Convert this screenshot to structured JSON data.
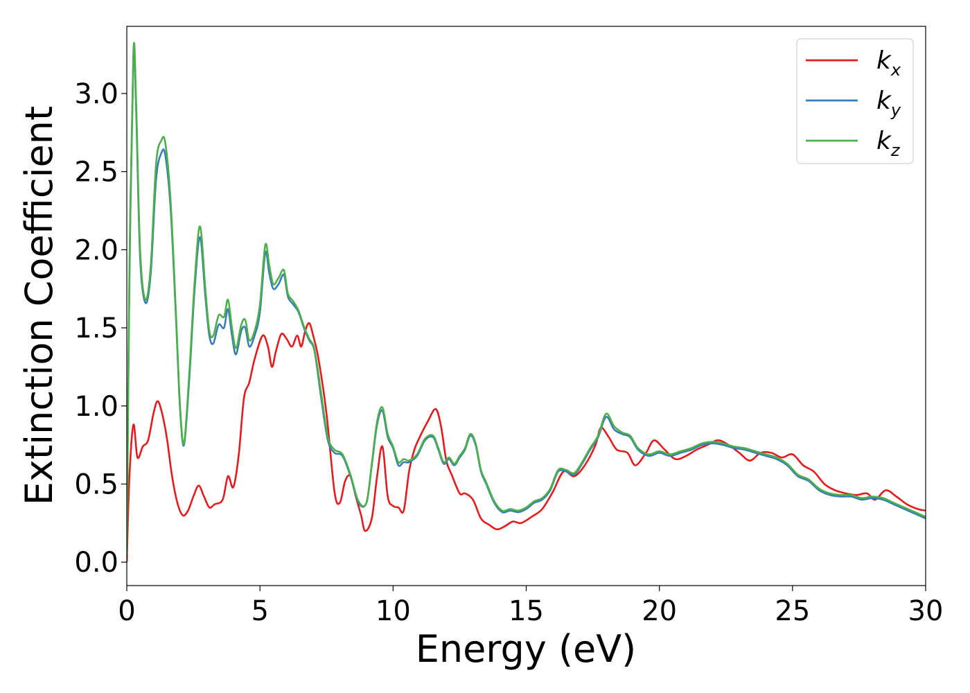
{
  "chart_data": {
    "type": "line",
    "title": "",
    "xlabel": "Energy (eV)",
    "ylabel": "Extinction Coefficient",
    "xlim": [
      0,
      30
    ],
    "ylim": [
      -0.15,
      3.43
    ],
    "xticks": [
      0,
      5,
      10,
      15,
      20,
      25,
      30
    ],
    "xtick_labels": [
      "0",
      "5",
      "10",
      "15",
      "20",
      "25",
      "30"
    ],
    "yticks": [
      0.0,
      0.5,
      1.0,
      1.5,
      2.0,
      2.5,
      3.0
    ],
    "ytick_labels": [
      "0.0",
      "0.5",
      "1.0",
      "1.5",
      "2.0",
      "2.5",
      "3.0"
    ],
    "grid": false,
    "legend": {
      "position": "top-right",
      "entries": [
        {
          "base": "k",
          "sub": "x",
          "color": "#e41a1c"
        },
        {
          "base": "k",
          "sub": "y",
          "color": "#377eb8"
        },
        {
          "base": "k",
          "sub": "z",
          "color": "#4daf4a"
        }
      ]
    },
    "series": [
      {
        "name": "k_x",
        "color": "#e41a1c",
        "x": [
          0,
          0.1,
          0.25,
          0.4,
          0.6,
          0.8,
          1.0,
          1.15,
          1.3,
          1.5,
          1.7,
          1.9,
          2.1,
          2.3,
          2.5,
          2.7,
          2.9,
          3.1,
          3.3,
          3.6,
          3.8,
          4.0,
          4.2,
          4.4,
          4.6,
          4.8,
          5.1,
          5.3,
          5.45,
          5.6,
          5.8,
          6.0,
          6.2,
          6.4,
          6.55,
          6.7,
          6.85,
          7.0,
          7.2,
          7.5,
          7.8,
          8.0,
          8.2,
          8.4,
          8.6,
          8.8,
          8.95,
          9.2,
          9.4,
          9.6,
          9.8,
          10.0,
          10.2,
          10.4,
          10.6,
          10.8,
          11.0,
          11.3,
          11.6,
          11.8,
          12.0,
          12.2,
          12.5,
          12.7,
          13.0,
          13.3,
          13.6,
          13.9,
          14.2,
          14.5,
          14.8,
          15.2,
          15.6,
          16.0,
          16.4,
          16.8,
          17.2,
          17.6,
          17.8,
          18.1,
          18.4,
          18.8,
          19.1,
          19.5,
          19.8,
          20.2,
          20.6,
          21.0,
          21.4,
          21.8,
          22.2,
          22.6,
          23.0,
          23.4,
          23.8,
          24.2,
          24.6,
          25.0,
          25.4,
          25.8,
          26.2,
          26.6,
          27.0,
          27.4,
          27.8,
          28.1,
          28.5,
          28.9,
          29.3,
          29.7,
          30.0
        ],
        "y": [
          0.0,
          0.55,
          0.88,
          0.67,
          0.74,
          0.78,
          0.95,
          1.03,
          0.97,
          0.8,
          0.55,
          0.38,
          0.3,
          0.33,
          0.42,
          0.49,
          0.42,
          0.35,
          0.37,
          0.4,
          0.55,
          0.48,
          0.68,
          1.05,
          1.15,
          1.3,
          1.45,
          1.38,
          1.25,
          1.35,
          1.46,
          1.43,
          1.38,
          1.45,
          1.38,
          1.48,
          1.53,
          1.45,
          1.3,
          0.95,
          0.45,
          0.38,
          0.52,
          0.55,
          0.42,
          0.3,
          0.2,
          0.28,
          0.55,
          0.74,
          0.42,
          0.36,
          0.35,
          0.33,
          0.58,
          0.72,
          0.8,
          0.9,
          0.98,
          0.87,
          0.65,
          0.56,
          0.44,
          0.44,
          0.4,
          0.28,
          0.24,
          0.21,
          0.23,
          0.26,
          0.25,
          0.29,
          0.34,
          0.45,
          0.58,
          0.55,
          0.62,
          0.75,
          0.86,
          0.8,
          0.72,
          0.7,
          0.62,
          0.7,
          0.78,
          0.72,
          0.66,
          0.68,
          0.72,
          0.75,
          0.78,
          0.75,
          0.7,
          0.65,
          0.7,
          0.7,
          0.67,
          0.69,
          0.62,
          0.58,
          0.5,
          0.46,
          0.44,
          0.43,
          0.44,
          0.4,
          0.46,
          0.42,
          0.37,
          0.34,
          0.33
        ]
      },
      {
        "name": "k_y",
        "color": "#377eb8",
        "x": [
          0,
          0.1,
          0.25,
          0.35,
          0.5,
          0.7,
          0.9,
          1.1,
          1.3,
          1.45,
          1.65,
          1.85,
          2.0,
          2.15,
          2.35,
          2.55,
          2.75,
          2.95,
          3.1,
          3.25,
          3.45,
          3.65,
          3.8,
          3.95,
          4.1,
          4.3,
          4.45,
          4.6,
          4.8,
          5.0,
          5.2,
          5.35,
          5.5,
          5.7,
          5.9,
          6.05,
          6.25,
          6.45,
          6.65,
          6.85,
          7.05,
          7.3,
          7.55,
          7.8,
          8.1,
          8.4,
          8.7,
          9.0,
          9.2,
          9.4,
          9.6,
          9.8,
          10.0,
          10.2,
          10.4,
          10.6,
          10.9,
          11.2,
          11.5,
          11.7,
          11.9,
          12.1,
          12.3,
          12.5,
          12.7,
          12.9,
          13.1,
          13.3,
          13.5,
          13.8,
          14.1,
          14.4,
          14.7,
          15.0,
          15.3,
          15.6,
          15.9,
          16.2,
          16.5,
          16.8,
          17.1,
          17.4,
          17.7,
          18.0,
          18.3,
          18.6,
          18.9,
          19.2,
          19.6,
          20.0,
          20.4,
          20.8,
          21.2,
          21.6,
          22.0,
          22.4,
          22.8,
          23.2,
          23.6,
          24.0,
          24.4,
          24.8,
          25.2,
          25.6,
          26.0,
          26.4,
          26.8,
          27.2,
          27.6,
          28.0,
          28.4,
          28.8,
          29.2,
          29.6,
          30.0
        ],
        "y": [
          0.05,
          1.8,
          3.25,
          2.9,
          1.95,
          1.66,
          1.85,
          2.45,
          2.62,
          2.6,
          2.25,
          1.55,
          0.98,
          0.75,
          1.18,
          1.75,
          2.08,
          1.7,
          1.45,
          1.4,
          1.52,
          1.5,
          1.62,
          1.45,
          1.33,
          1.48,
          1.5,
          1.38,
          1.45,
          1.6,
          1.98,
          1.85,
          1.75,
          1.78,
          1.84,
          1.7,
          1.65,
          1.6,
          1.5,
          1.42,
          1.35,
          1.05,
          0.78,
          0.7,
          0.68,
          0.55,
          0.38,
          0.38,
          0.62,
          0.88,
          0.97,
          0.8,
          0.73,
          0.62,
          0.64,
          0.64,
          0.68,
          0.78,
          0.8,
          0.72,
          0.63,
          0.66,
          0.62,
          0.67,
          0.72,
          0.81,
          0.75,
          0.58,
          0.5,
          0.38,
          0.32,
          0.33,
          0.32,
          0.34,
          0.38,
          0.4,
          0.46,
          0.58,
          0.58,
          0.56,
          0.63,
          0.72,
          0.8,
          0.93,
          0.85,
          0.82,
          0.8,
          0.72,
          0.68,
          0.7,
          0.68,
          0.7,
          0.72,
          0.75,
          0.76,
          0.75,
          0.73,
          0.72,
          0.7,
          0.68,
          0.66,
          0.62,
          0.55,
          0.52,
          0.46,
          0.43,
          0.42,
          0.42,
          0.4,
          0.41,
          0.4,
          0.37,
          0.34,
          0.31,
          0.28
        ]
      },
      {
        "name": "k_z",
        "color": "#4daf4a",
        "x": [
          0,
          0.1,
          0.25,
          0.35,
          0.5,
          0.7,
          0.9,
          1.1,
          1.3,
          1.45,
          1.65,
          1.85,
          2.0,
          2.15,
          2.35,
          2.55,
          2.75,
          2.95,
          3.1,
          3.25,
          3.45,
          3.65,
          3.8,
          3.95,
          4.1,
          4.3,
          4.45,
          4.6,
          4.8,
          5.0,
          5.2,
          5.35,
          5.5,
          5.7,
          5.9,
          6.05,
          6.25,
          6.45,
          6.65,
          6.85,
          7.05,
          7.3,
          7.55,
          7.8,
          8.1,
          8.4,
          8.7,
          9.0,
          9.2,
          9.4,
          9.6,
          9.8,
          10.0,
          10.2,
          10.4,
          10.6,
          10.9,
          11.2,
          11.5,
          11.7,
          11.9,
          12.1,
          12.3,
          12.5,
          12.7,
          12.9,
          13.1,
          13.3,
          13.5,
          13.8,
          14.1,
          14.4,
          14.7,
          15.0,
          15.3,
          15.6,
          15.9,
          16.2,
          16.5,
          16.8,
          17.1,
          17.4,
          17.7,
          18.0,
          18.3,
          18.6,
          18.9,
          19.2,
          19.6,
          20.0,
          20.4,
          20.8,
          21.2,
          21.6,
          22.0,
          22.4,
          22.8,
          23.2,
          23.6,
          24.0,
          24.4,
          24.8,
          25.2,
          25.6,
          26.0,
          26.4,
          26.8,
          27.2,
          27.6,
          28.0,
          28.4,
          28.8,
          29.2,
          29.6,
          30.0
        ],
        "y": [
          0.05,
          1.9,
          3.27,
          2.95,
          2.0,
          1.68,
          1.9,
          2.55,
          2.7,
          2.68,
          2.3,
          1.58,
          1.0,
          0.76,
          1.22,
          1.8,
          2.15,
          1.75,
          1.48,
          1.45,
          1.58,
          1.57,
          1.68,
          1.5,
          1.37,
          1.52,
          1.55,
          1.42,
          1.48,
          1.65,
          2.03,
          1.9,
          1.78,
          1.82,
          1.87,
          1.72,
          1.67,
          1.61,
          1.51,
          1.43,
          1.36,
          1.08,
          0.8,
          0.72,
          0.69,
          0.56,
          0.39,
          0.38,
          0.63,
          0.9,
          0.99,
          0.82,
          0.74,
          0.64,
          0.66,
          0.65,
          0.69,
          0.79,
          0.81,
          0.73,
          0.64,
          0.67,
          0.63,
          0.68,
          0.73,
          0.82,
          0.76,
          0.59,
          0.51,
          0.39,
          0.33,
          0.34,
          0.33,
          0.35,
          0.39,
          0.41,
          0.47,
          0.59,
          0.59,
          0.57,
          0.64,
          0.73,
          0.81,
          0.95,
          0.87,
          0.83,
          0.81,
          0.73,
          0.69,
          0.71,
          0.69,
          0.71,
          0.73,
          0.76,
          0.77,
          0.76,
          0.74,
          0.73,
          0.71,
          0.69,
          0.67,
          0.63,
          0.56,
          0.53,
          0.47,
          0.44,
          0.43,
          0.43,
          0.41,
          0.42,
          0.41,
          0.38,
          0.35,
          0.32,
          0.29
        ]
      }
    ]
  }
}
